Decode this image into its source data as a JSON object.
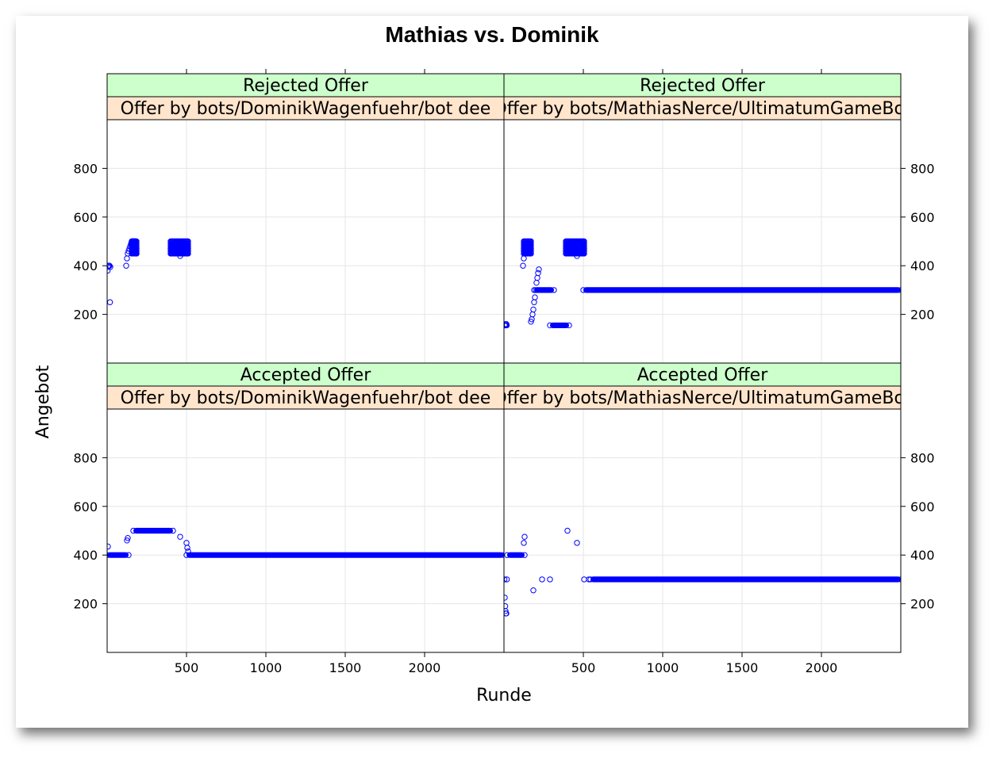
{
  "chart_data": {
    "type": "scatter",
    "title": "Mathias vs. Dominik",
    "xlabel": "Runde",
    "ylabel": "Angebot",
    "xlim": [
      0,
      2500
    ],
    "ylim": [
      0,
      1000
    ],
    "x_ticks": [
      500,
      1000,
      1500,
      2000
    ],
    "y_ticks": [
      200,
      400,
      600,
      800
    ],
    "grid": true,
    "marker": "open-circle",
    "colors": {
      "points": "#0000ff",
      "strip_outer": "#ccffcc",
      "strip_inner": "#ffe5cc",
      "grid": "#e6e6e6",
      "frame": "#000000"
    },
    "panels": [
      {
        "id": "rejected-dominik",
        "strip_outer": "Rejected Offer",
        "strip_inner": "Offer by bots/DominikWagenfuehr/bot dee",
        "runs": [],
        "points": [
          [
            3,
            380
          ],
          [
            5,
            395
          ],
          [
            8,
            400
          ],
          [
            12,
            400
          ],
          [
            15,
            400
          ],
          [
            18,
            250
          ],
          [
            20,
            395
          ],
          [
            120,
            400
          ],
          [
            125,
            430
          ],
          [
            130,
            450
          ],
          [
            135,
            460
          ],
          [
            140,
            470
          ],
          [
            145,
            480
          ],
          [
            150,
            490
          ],
          [
            155,
            500
          ],
          [
            160,
            500
          ],
          [
            165,
            490
          ],
          [
            170,
            480
          ],
          [
            175,
            470
          ],
          [
            180,
            460
          ],
          [
            185,
            450
          ],
          [
            180,
            500
          ],
          [
            175,
            500
          ],
          [
            170,
            500
          ],
          [
            165,
            500
          ],
          [
            460,
            440
          ],
          [
            500,
            450
          ]
        ],
        "blocks": [
          {
            "x0": 155,
            "x1": 185,
            "ys": [
              450,
              460,
              470,
              480,
              490,
              500
            ]
          },
          {
            "x0": 400,
            "x1": 510,
            "ys": [
              450,
              460,
              470,
              480,
              490,
              500
            ]
          }
        ]
      },
      {
        "id": "rejected-mathias",
        "strip_outer": "Rejected Offer",
        "strip_inner": "Offer by bots/MathiasNerce/UltimatumGameBot",
        "points": [
          [
            5,
            155
          ],
          [
            8,
            155
          ],
          [
            10,
            160
          ],
          [
            12,
            155
          ],
          [
            15,
            160
          ],
          [
            18,
            155
          ],
          [
            120,
            400
          ],
          [
            125,
            430
          ],
          [
            130,
            460
          ],
          [
            135,
            450
          ],
          [
            140,
            470
          ],
          [
            145,
            480
          ],
          [
            150,
            490
          ],
          [
            170,
            170
          ],
          [
            175,
            180
          ],
          [
            180,
            200
          ],
          [
            185,
            220
          ],
          [
            190,
            250
          ],
          [
            195,
            270
          ],
          [
            200,
            300
          ],
          [
            205,
            330
          ],
          [
            210,
            350
          ],
          [
            215,
            370
          ],
          [
            220,
            385
          ],
          [
            460,
            440
          ],
          [
            500,
            450
          ]
        ],
        "blocks": [
          {
            "x0": 125,
            "x1": 170,
            "ys": [
              450,
              460,
              470,
              480,
              490,
              500
            ]
          },
          {
            "x0": 390,
            "x1": 505,
            "ys": [
              450,
              460,
              470,
              480,
              490,
              500
            ]
          }
        ],
        "runs": [
          {
            "x0": 190,
            "x1": 315,
            "y": 300
          },
          {
            "x0": 290,
            "x1": 410,
            "y": 155
          },
          {
            "x0": 500,
            "x1": 2500,
            "y": 300
          }
        ]
      },
      {
        "id": "accepted-dominik",
        "strip_outer": "Accepted Offer",
        "strip_inner": "Offer by bots/DominikWagenfuehr/bot dee",
        "points": [
          [
            5,
            435
          ],
          [
            125,
            460
          ],
          [
            130,
            470
          ],
          [
            460,
            475
          ],
          [
            500,
            450
          ],
          [
            505,
            430
          ],
          [
            510,
            415
          ]
        ],
        "blocks": [],
        "runs": [
          {
            "x0": 0,
            "x1": 135,
            "y": 400
          },
          {
            "x0": 165,
            "x1": 415,
            "y": 500
          },
          {
            "x0": 500,
            "x1": 2500,
            "y": 400
          }
        ]
      },
      {
        "id": "accepted-mathias",
        "strip_outer": "Accepted Offer",
        "strip_inner": "Offer by bots/MathiasNerce/UltimatumGameBot",
        "points": [
          [
            3,
            300
          ],
          [
            5,
            225
          ],
          [
            8,
            190
          ],
          [
            10,
            170
          ],
          [
            12,
            160
          ],
          [
            15,
            160
          ],
          [
            18,
            300
          ],
          [
            125,
            450
          ],
          [
            130,
            475
          ],
          [
            185,
            255
          ],
          [
            240,
            300
          ],
          [
            290,
            300
          ],
          [
            400,
            500
          ],
          [
            460,
            450
          ],
          [
            505,
            300
          ],
          [
            535,
            300
          ]
        ],
        "blocks": [],
        "runs": [
          {
            "x0": 20,
            "x1": 130,
            "y": 400
          },
          {
            "x0": 545,
            "x1": 2500,
            "y": 300
          }
        ]
      }
    ]
  }
}
